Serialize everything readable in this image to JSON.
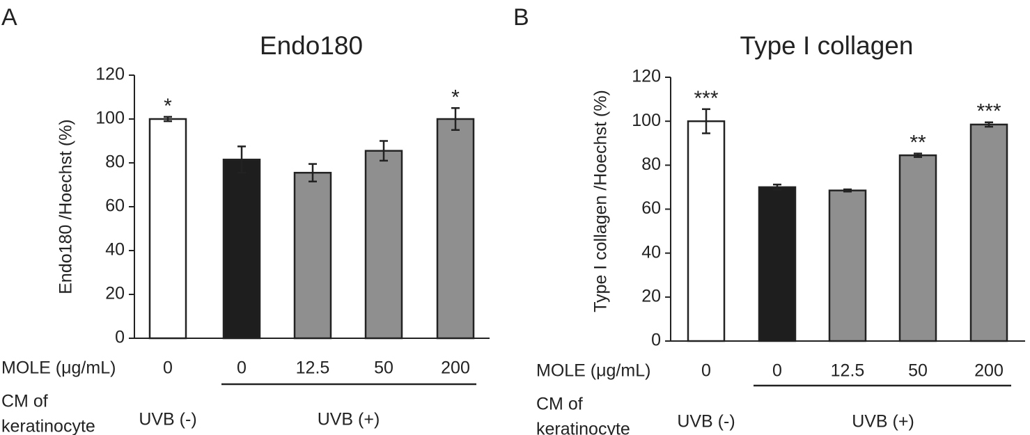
{
  "chart_data": [
    {
      "type": "bar",
      "panel_label": "A",
      "title": "Endo180",
      "ylabel": "Endo180 /Hoechst (%)",
      "ylim": [
        0,
        120
      ],
      "yticks": [
        "0",
        "20",
        "40",
        "60",
        "80",
        "100",
        "120"
      ],
      "row_labels": {
        "mole": "MOLE (μg/mL)",
        "cm_line1": "CM of",
        "cm_line2": "keratinocyte"
      },
      "categories": [
        "0",
        "0",
        "12.5",
        "50",
        "200"
      ],
      "values": [
        100,
        81.5,
        75.5,
        85.5,
        100
      ],
      "errors": [
        1,
        6,
        4,
        4.5,
        5
      ],
      "significance": [
        "*",
        "",
        "",
        "",
        "*"
      ],
      "fills": [
        "#ffffff",
        "#1e1e1e",
        "#8f8f8f",
        "#8f8f8f",
        "#8f8f8f"
      ],
      "groups": [
        {
          "label": "UVB (-)",
          "start": 0,
          "end": 0,
          "bracket": false
        },
        {
          "label": "UVB (+)",
          "start": 1,
          "end": 4,
          "bracket": true
        }
      ]
    },
    {
      "type": "bar",
      "panel_label": "B",
      "title": "Type I collagen",
      "ylabel": "Type I collagen /Hoechst (%)",
      "ylim": [
        0,
        120
      ],
      "yticks": [
        "0",
        "20",
        "40",
        "60",
        "80",
        "100",
        "120"
      ],
      "row_labels": {
        "mole": "MOLE (μg/mL)",
        "cm_line1": "CM of",
        "cm_line2": "keratinocyte"
      },
      "categories": [
        "0",
        "0",
        "12.5",
        "50",
        "200"
      ],
      "values": [
        100,
        70,
        68.5,
        84.5,
        98.5
      ],
      "errors": [
        5.5,
        1.2,
        0.5,
        0.8,
        1
      ],
      "significance": [
        "***",
        "",
        "",
        "**",
        "***"
      ],
      "fills": [
        "#ffffff",
        "#1e1e1e",
        "#8f8f8f",
        "#8f8f8f",
        "#8f8f8f"
      ],
      "groups": [
        {
          "label": "UVB (-)",
          "start": 0,
          "end": 0,
          "bracket": false
        },
        {
          "label": "UVB (+)",
          "start": 1,
          "end": 4,
          "bracket": true
        }
      ]
    }
  ]
}
